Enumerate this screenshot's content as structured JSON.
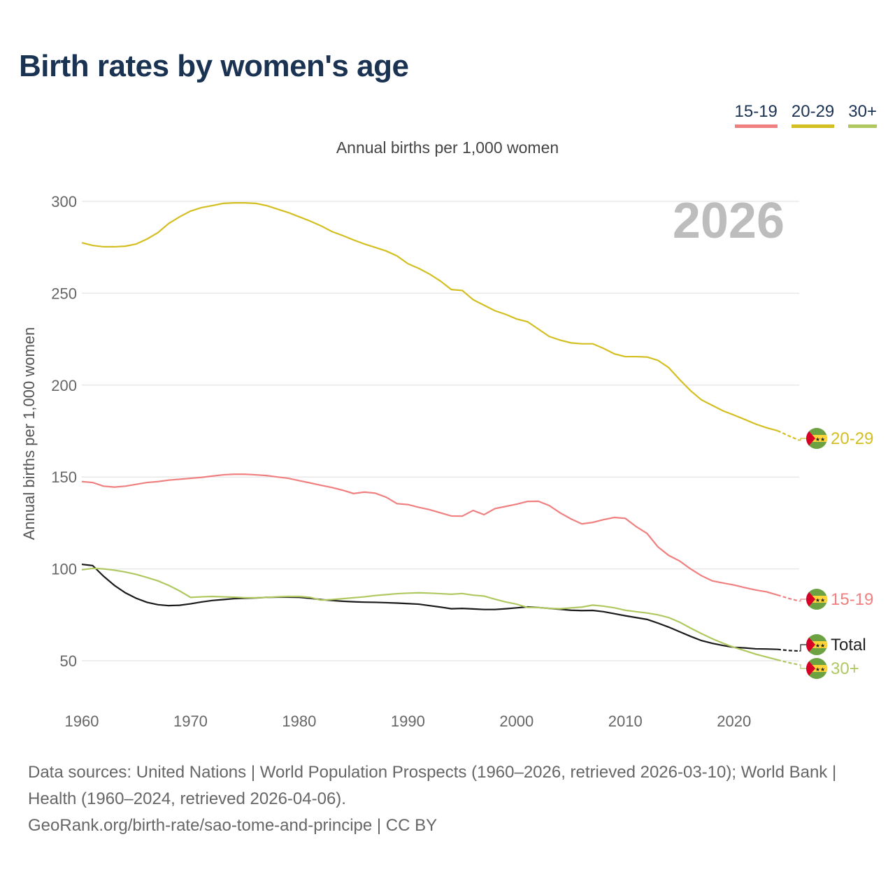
{
  "title": "Birth rates by women's age",
  "legend": [
    {
      "label": "15-19",
      "color": "#f08080"
    },
    {
      "label": "20-29",
      "color": "#d4bf22"
    },
    {
      "label": "30+",
      "color": "#b0c860"
    }
  ],
  "footer": {
    "sources": "Data sources: United Nations | World Population Prospects (1960–2026, retrieved 2026-03-10); World Bank | Health (1960–2024, retrieved 2026-04-06).",
    "link": "GeoRank.org/birth-rate/sao-tome-and-principe | CC BY"
  },
  "chart_data": {
    "type": "line",
    "title": "Birth rates by women's age",
    "subtitle": "Annual births per 1,000 women",
    "ylabel": "Annual births per 1,000 women",
    "xlabel": "",
    "year_label": "2026",
    "xlim": [
      1960,
      2026
    ],
    "ylim": [
      30,
      300
    ],
    "xticks": [
      1960,
      1970,
      1980,
      1990,
      2000,
      2010,
      2020
    ],
    "yticks": [
      50,
      100,
      150,
      200,
      250,
      300
    ],
    "grid": true,
    "projected_from": 2024,
    "flag_icon": "sao-tome-and-principe-flag",
    "x_start": 1960,
    "series": [
      {
        "name": "20-29",
        "color": "#d4bf22",
        "values": [
          277.5,
          276,
          275.3,
          275.3,
          275.6,
          276.8,
          279.5,
          283,
          288,
          291.6,
          294.7,
          296.6,
          297.7,
          298.9,
          299.2,
          299.2,
          298.9,
          297.7,
          295.8,
          293.9,
          291.6,
          289.3,
          286.7,
          283.6,
          281.4,
          279,
          276.8,
          274.9,
          273,
          270.3,
          266.1,
          263.5,
          260.4,
          256.6,
          252,
          251.5,
          246.5,
          243.5,
          240.5,
          238.5,
          236,
          234.5,
          230.5,
          226.5,
          224.5,
          223,
          222.5,
          222.5,
          220,
          217,
          215.5,
          215.5,
          215.3,
          213.5,
          209.5,
          203,
          197,
          192,
          189,
          186,
          183.7,
          181.3,
          178.8,
          176.8,
          175.2,
          172.5,
          170
        ]
      },
      {
        "name": "15-19",
        "color": "#f08080",
        "values": [
          147.5,
          147,
          145,
          144.5,
          145,
          146,
          147,
          147.5,
          148.3,
          148.8,
          149.3,
          149.8,
          150.5,
          151.2,
          151.5,
          151.5,
          151.2,
          150.8,
          150,
          149.3,
          148,
          146.8,
          145.5,
          144.3,
          142.8,
          141,
          141.8,
          141.2,
          139,
          135.5,
          135,
          133.5,
          132.2,
          130.5,
          128.8,
          128.7,
          131.8,
          129.5,
          132.8,
          134,
          135.2,
          136.7,
          136.8,
          134.5,
          130.5,
          127.2,
          124.5,
          125.3,
          126.8,
          128,
          127.5,
          123,
          119.3,
          112,
          107.3,
          104.3,
          100,
          96.3,
          93.5,
          92.3,
          91.2,
          89.8,
          88.5,
          87.5,
          85.8,
          84,
          82.5
        ]
      },
      {
        "name": "Total",
        "color": "#1a1a1a",
        "values": [
          102.5,
          101.8,
          96,
          91,
          87,
          84,
          81.8,
          80.5,
          80,
          80.2,
          81,
          82,
          82.8,
          83.3,
          83.8,
          84,
          84.2,
          84.5,
          84.6,
          84.6,
          84.5,
          84,
          83.3,
          82.8,
          82.4,
          82.1,
          81.9,
          81.8,
          81.6,
          81.4,
          81.1,
          80.8,
          80,
          79.2,
          78.3,
          78.5,
          78.2,
          77.9,
          77.9,
          78.3,
          78.8,
          79.3,
          79,
          78.5,
          78,
          77.5,
          77.3,
          77.4,
          76.7,
          75.6,
          74.5,
          73.5,
          72.5,
          70.5,
          68.3,
          65.8,
          63.3,
          61,
          59.5,
          58.3,
          57.3,
          57,
          56.5,
          56.4,
          56.2,
          55.6,
          55.3
        ]
      },
      {
        "name": "30+",
        "color": "#b0c860",
        "values": [
          99.5,
          100.3,
          100,
          99.3,
          98.3,
          97,
          95.3,
          93.5,
          91,
          88,
          84.5,
          84.8,
          85,
          84.8,
          84.6,
          84.3,
          84.3,
          84.5,
          84.8,
          85,
          85,
          84.5,
          83,
          83.3,
          83.8,
          84.3,
          84.8,
          85.5,
          86,
          86.5,
          86.8,
          87,
          86.8,
          86.5,
          86.2,
          86.6,
          85.7,
          85.2,
          83.5,
          82,
          80.8,
          79,
          79,
          78.5,
          78.3,
          78.8,
          79.2,
          80.3,
          79.7,
          78.8,
          77.5,
          76.7,
          76,
          75,
          73.5,
          71,
          67.8,
          64.8,
          62,
          59.5,
          57.3,
          55.5,
          53.6,
          52,
          50.5,
          49,
          47.8
        ]
      }
    ]
  }
}
